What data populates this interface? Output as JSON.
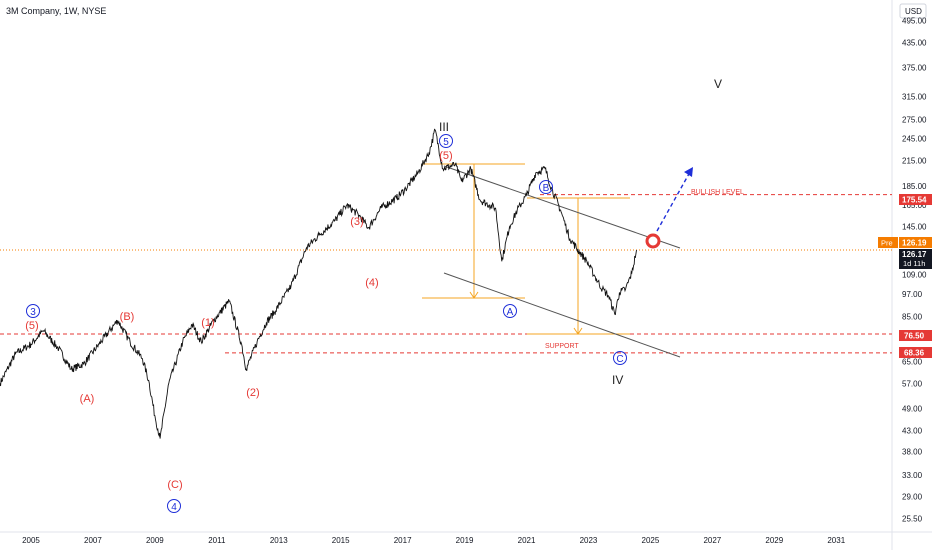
{
  "chart_data": {
    "type": "line",
    "title": "3M Company, 1W, NYSE",
    "currency": "USD",
    "scale": "log",
    "ylim": [
      23.5,
      560
    ],
    "xlim": [
      2004.0,
      2032.8
    ],
    "y_ticks": [
      "495.00",
      "435.00",
      "375.00",
      "315.00",
      "275.00",
      "245.00",
      "215.00",
      "185.00",
      "165.00",
      "145.00",
      "109.00",
      "97.00",
      "85.00",
      "65.00",
      "57.00",
      "49.00",
      "43.00",
      "38.00",
      "33.00",
      "29.00",
      "25.50"
    ],
    "x_ticks": [
      "2005",
      "2007",
      "2009",
      "2011",
      "2013",
      "2015",
      "2017",
      "2019",
      "2021",
      "2023",
      "2025",
      "2027",
      "2029",
      "2031"
    ],
    "series": [
      {
        "color": "#111111",
        "points": [
          [
            2004.0,
            57
          ],
          [
            2004.5,
            68
          ],
          [
            2005.0,
            72
          ],
          [
            2005.4,
            78
          ],
          [
            2005.9,
            70
          ],
          [
            2006.3,
            62
          ],
          [
            2006.7,
            64
          ],
          [
            2007.2,
            72
          ],
          [
            2007.8,
            83
          ],
          [
            2008.2,
            73
          ],
          [
            2008.6,
            66
          ],
          [
            2008.8,
            58
          ],
          [
            2009.0,
            47
          ],
          [
            2009.17,
            41
          ],
          [
            2009.45,
            57
          ],
          [
            2009.9,
            73
          ],
          [
            2010.2,
            81
          ],
          [
            2010.5,
            73
          ],
          [
            2010.9,
            83
          ],
          [
            2011.4,
            93
          ],
          [
            2011.8,
            72
          ],
          [
            2011.95,
            62
          ],
          [
            2012.3,
            73
          ],
          [
            2012.6,
            82
          ],
          [
            2012.9,
            88
          ],
          [
            2013.4,
            102
          ],
          [
            2013.9,
            128
          ],
          [
            2014.3,
            138
          ],
          [
            2014.8,
            150
          ],
          [
            2015.2,
            165
          ],
          [
            2015.6,
            155
          ],
          [
            2015.9,
            144
          ],
          [
            2016.3,
            162
          ],
          [
            2016.8,
            172
          ],
          [
            2017.1,
            182
          ],
          [
            2017.5,
            200
          ],
          [
            2017.85,
            225
          ],
          [
            2018.05,
            258
          ],
          [
            2018.3,
            205
          ],
          [
            2018.7,
            210
          ],
          [
            2018.9,
            190
          ],
          [
            2019.2,
            205
          ],
          [
            2019.5,
            170
          ],
          [
            2019.8,
            165
          ],
          [
            2020.0,
            162
          ],
          [
            2020.2,
            118
          ],
          [
            2020.45,
            145
          ],
          [
            2020.7,
            160
          ],
          [
            2021.0,
            175
          ],
          [
            2021.3,
            200
          ],
          [
            2021.6,
            205
          ],
          [
            2021.8,
            183
          ],
          [
            2022.1,
            160
          ],
          [
            2022.4,
            135
          ],
          [
            2022.7,
            125
          ],
          [
            2022.95,
            118
          ],
          [
            2023.2,
            108
          ],
          [
            2023.45,
            100
          ],
          [
            2023.65,
            96
          ],
          [
            2023.85,
            86
          ],
          [
            2024.0,
            98
          ],
          [
            2024.2,
            100
          ],
          [
            2024.4,
            110
          ],
          [
            2024.55,
            126.17
          ]
        ]
      }
    ],
    "price_labels": {
      "bullish_level": "175.54",
      "pre_price": "126.19",
      "pre_tag": "Pre",
      "last_price": "126.17",
      "countdown": "1d 11h",
      "level_a": "76.50",
      "level_b": "68.36"
    },
    "annotations": {
      "bullish_level_text": "BULLISH LEVEL",
      "support_text": "SUPPORT",
      "wave_III": "III",
      "wave_IV": "IV",
      "wave_V": "V",
      "circ_5_top": "5",
      "paren_5_top": "(5)",
      "circ_3": "3",
      "paren_5_left": "(5)",
      "paren_A": "(A)",
      "paren_B": "(B)",
      "paren_C": "(C)",
      "circ_4": "4",
      "paren_1": "(1)",
      "paren_2": "(2)",
      "paren_3": "(3)",
      "paren_4": "(4)",
      "circ_A": "A",
      "circ_B": "B",
      "circ_C": "C"
    },
    "colors": {
      "wave_red": "#e53935",
      "wave_blue": "#1e2ed8",
      "fib_orange": "#f5a623",
      "level_red": "#e53935",
      "price_orange": "#f57c00",
      "arrow_blue": "#1e2ed8",
      "channel": "#555555"
    }
  }
}
